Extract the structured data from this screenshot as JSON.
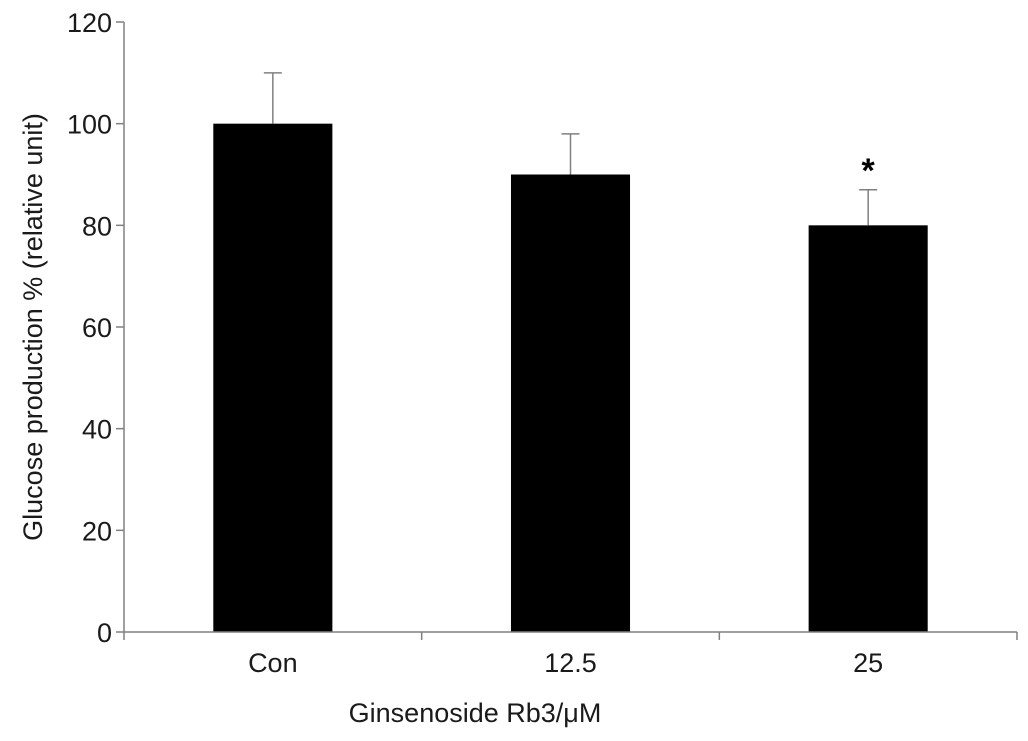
{
  "chart_data": {
    "type": "bar",
    "title": "",
    "xlabel": "Ginsenoside Rb3/μM",
    "ylabel": "Glucose production % (relative unit)",
    "categories": [
      "Con",
      "12.5",
      "25"
    ],
    "values": [
      100,
      90,
      80
    ],
    "errors": [
      10,
      8,
      7
    ],
    "annotations": [
      "",
      "",
      "*"
    ],
    "ylim": [
      0,
      120
    ],
    "yticks": [
      0,
      20,
      40,
      60,
      80,
      100,
      120
    ],
    "grid": false,
    "legend": "none",
    "bar_color": "#000000",
    "axis_color": "#808080"
  }
}
